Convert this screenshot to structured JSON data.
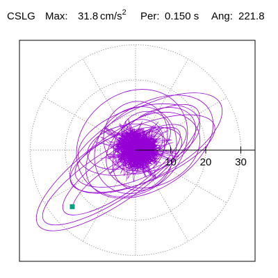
{
  "header": {
    "station": "CSLG",
    "max_label": "Max:",
    "max_value": "31.8",
    "max_unit": "cm/s",
    "max_unit_exp": "2",
    "per_label": "Per:",
    "per_value": "0.150 s",
    "ang_label": "Ang:",
    "ang_value": "221.8"
  },
  "chart_data": {
    "type": "scatter",
    "title": "",
    "polar_rings": [
      10,
      20,
      30
    ],
    "radial_ticks": [
      "10",
      "20",
      "30"
    ],
    "angle_spokes_deg": [
      0,
      30,
      60,
      90,
      120,
      150,
      180,
      210,
      240,
      270,
      300,
      330
    ],
    "grid": true,
    "trace_color": "#9400d3",
    "peak_marker_color": "#00a080",
    "peak": {
      "amplitude": 31.8,
      "angle_deg": 221.8,
      "period_s": 0.15
    }
  }
}
